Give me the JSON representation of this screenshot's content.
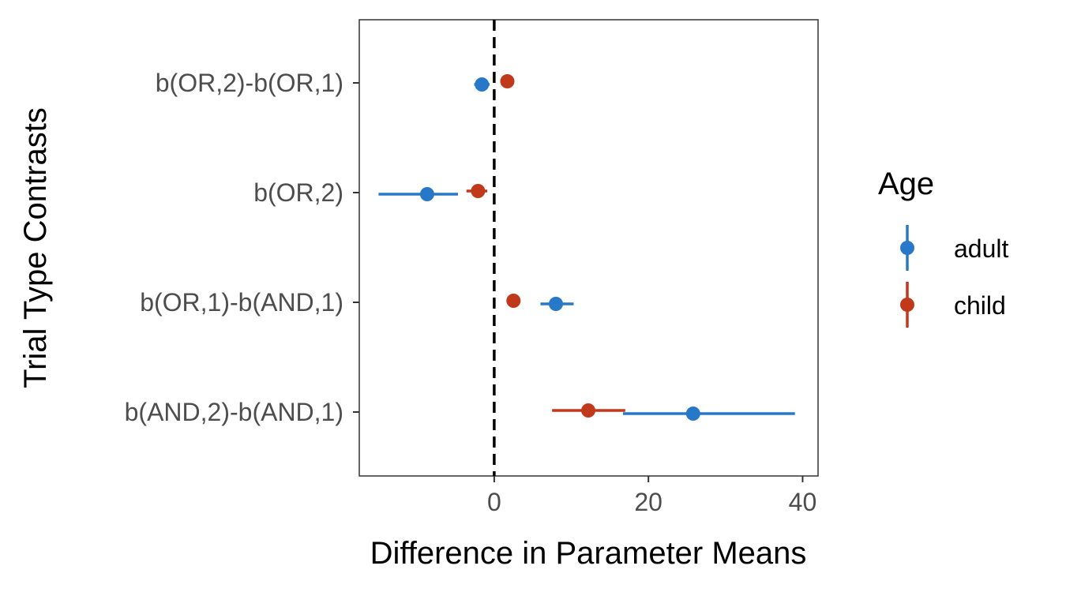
{
  "chart_data": {
    "type": "scatter",
    "title": "",
    "xlabel": "Difference in Parameter Means",
    "ylabel": "Trial Type Contrasts",
    "xlim": [
      -17.5,
      42
    ],
    "xticks": [
      0,
      20,
      40
    ],
    "categories": [
      "b(OR,2)-b(OR,1)",
      "b(OR,2)",
      "b(OR,1)-b(AND,1)",
      "b(AND,2)-b(AND,1)"
    ],
    "reference_line": {
      "x": 0,
      "style": "dashed"
    },
    "grid": false,
    "legend": {
      "title": "Age",
      "position": "right"
    },
    "series": [
      {
        "name": "adult",
        "color": "#2878c8",
        "points": [
          {
            "category": "b(OR,2)-b(OR,1)",
            "x": -1.6,
            "low": -2.6,
            "high": -0.6
          },
          {
            "category": "b(OR,2)",
            "x": -8.7,
            "low": -15.0,
            "high": -4.7
          },
          {
            "category": "b(OR,1)-b(AND,1)",
            "x": 8.0,
            "low": 6.0,
            "high": 10.3
          },
          {
            "category": "b(AND,2)-b(AND,1)",
            "x": 25.8,
            "low": 16.7,
            "high": 39.0
          }
        ]
      },
      {
        "name": "child",
        "color": "#c0391b",
        "points": [
          {
            "category": "b(OR,2)-b(OR,1)",
            "x": 1.7,
            "low": 1.3,
            "high": 2.1
          },
          {
            "category": "b(OR,2)",
            "x": -2.1,
            "low": -3.6,
            "high": -0.9
          },
          {
            "category": "b(OR,1)-b(AND,1)",
            "x": 2.5,
            "low": 2.1,
            "high": 2.9
          },
          {
            "category": "b(AND,2)-b(AND,1)",
            "x": 12.2,
            "low": 7.5,
            "high": 17.0
          }
        ]
      }
    ]
  }
}
